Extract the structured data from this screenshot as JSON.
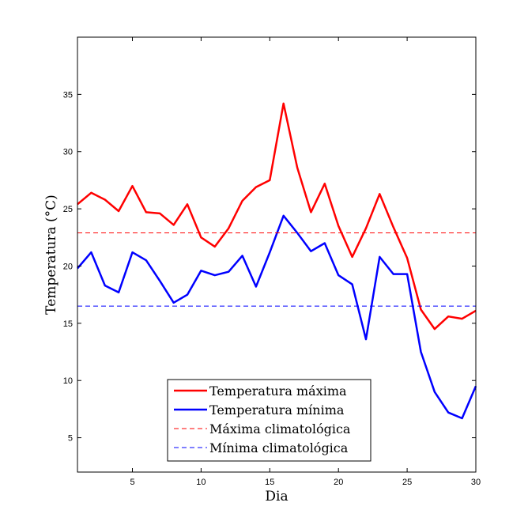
{
  "chart_data": {
    "type": "line",
    "xlabel": "Dia",
    "ylabel": "Temperatura (°C)",
    "xlim": [
      1,
      30
    ],
    "ylim": [
      2,
      40
    ],
    "xticks": [
      5,
      10,
      15,
      20,
      25,
      30
    ],
    "yticks": [
      5,
      10,
      15,
      20,
      25,
      30,
      35
    ],
    "x": [
      1,
      2,
      3,
      4,
      5,
      6,
      7,
      8,
      9,
      10,
      11,
      12,
      13,
      14,
      15,
      16,
      17,
      18,
      19,
      20,
      21,
      22,
      23,
      24,
      25,
      26,
      27,
      28,
      29,
      30
    ],
    "series": [
      {
        "name": "Temperatura máxima",
        "color": "#ff0000",
        "style": "solid",
        "values": [
          25.4,
          26.4,
          25.8,
          24.8,
          27.0,
          24.7,
          24.6,
          23.6,
          25.4,
          22.5,
          21.7,
          23.3,
          25.7,
          26.9,
          27.5,
          34.2,
          28.6,
          24.7,
          27.2,
          23.5,
          20.8,
          23.3,
          26.3,
          23.4,
          20.7,
          16.2,
          14.5,
          15.6,
          15.4,
          16.1
        ]
      },
      {
        "name": "Temperatura mínima",
        "color": "#0000ff",
        "style": "solid",
        "values": [
          19.8,
          21.2,
          18.3,
          17.7,
          21.2,
          20.5,
          18.7,
          16.8,
          17.5,
          19.6,
          19.2,
          19.5,
          20.9,
          18.2,
          21.2,
          24.4,
          22.9,
          21.3,
          22.0,
          19.2,
          18.4,
          13.6,
          20.8,
          19.3,
          19.3,
          12.5,
          9.0,
          7.2,
          6.7,
          9.5
        ]
      },
      {
        "name": "Máxima climatológica",
        "color": "#ff0000",
        "style": "dashed",
        "constant": 22.9
      },
      {
        "name": "Mínima climatológica",
        "color": "#0000ff",
        "style": "dashed",
        "constant": 16.5
      }
    ],
    "legend_position": "bottom-center"
  }
}
